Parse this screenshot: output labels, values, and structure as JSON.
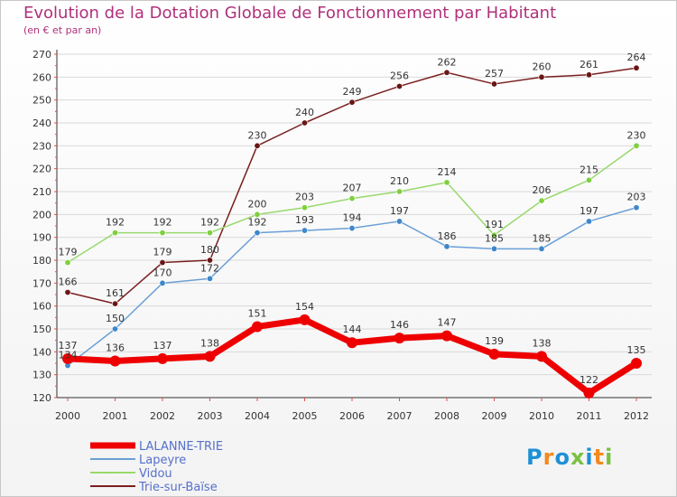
{
  "title": "Evolution de la Dotation Globale de Fonctionnement par Habitant",
  "subtitle": "(en € et par an)",
  "logo_text": "Proxiti",
  "colors": {
    "title": "#b0307a",
    "axis": "#333333",
    "grid": "#d9d9d9",
    "tick_marks": "#e05050",
    "legend_text": "#5570cc"
  },
  "chart_data": {
    "type": "line",
    "title": "Evolution de la Dotation Globale de Fonctionnement par Habitant",
    "subtitle": "(en € et par an)",
    "xlabel": "",
    "ylabel": "",
    "ylim": [
      120,
      270
    ],
    "yticks": [
      120,
      130,
      140,
      150,
      160,
      170,
      180,
      190,
      200,
      210,
      220,
      230,
      240,
      250,
      260,
      270
    ],
    "grid": true,
    "legend_position": "bottom-left",
    "categories": [
      "2000",
      "2001",
      "2002",
      "2003",
      "2004",
      "2005",
      "2006",
      "2007",
      "2008",
      "2009",
      "2010",
      "2011",
      "2012"
    ],
    "series": [
      {
        "name": "Trie-sur-Baïse",
        "color": "#7a1f1f",
        "marker": "#6a1616",
        "values": [
          166,
          161,
          179,
          180,
          230,
          240,
          249,
          256,
          262,
          257,
          260,
          261,
          264
        ]
      },
      {
        "name": "Vidou",
        "color": "#98d96c",
        "marker": "#7ed03e",
        "values": [
          179,
          192,
          192,
          192,
          200,
          203,
          207,
          210,
          214,
          191,
          206,
          215,
          230
        ]
      },
      {
        "name": "Lapeyre",
        "color": "#6a9fd6",
        "marker": "#3d87cc",
        "values": [
          134,
          150,
          170,
          172,
          192,
          193,
          194,
          197,
          186,
          185,
          185,
          197,
          203
        ]
      },
      {
        "name": "LALANNE-TRIE",
        "color": "#ee0000",
        "marker": "#ee0000",
        "thick": true,
        "values": [
          137,
          136,
          137,
          138,
          151,
          154,
          144,
          146,
          147,
          139,
          138,
          122,
          135
        ]
      }
    ],
    "legend_order": [
      "LALANNE-TRIE",
      "Lapeyre",
      "Vidou",
      "Trie-sur-Baïse"
    ]
  }
}
